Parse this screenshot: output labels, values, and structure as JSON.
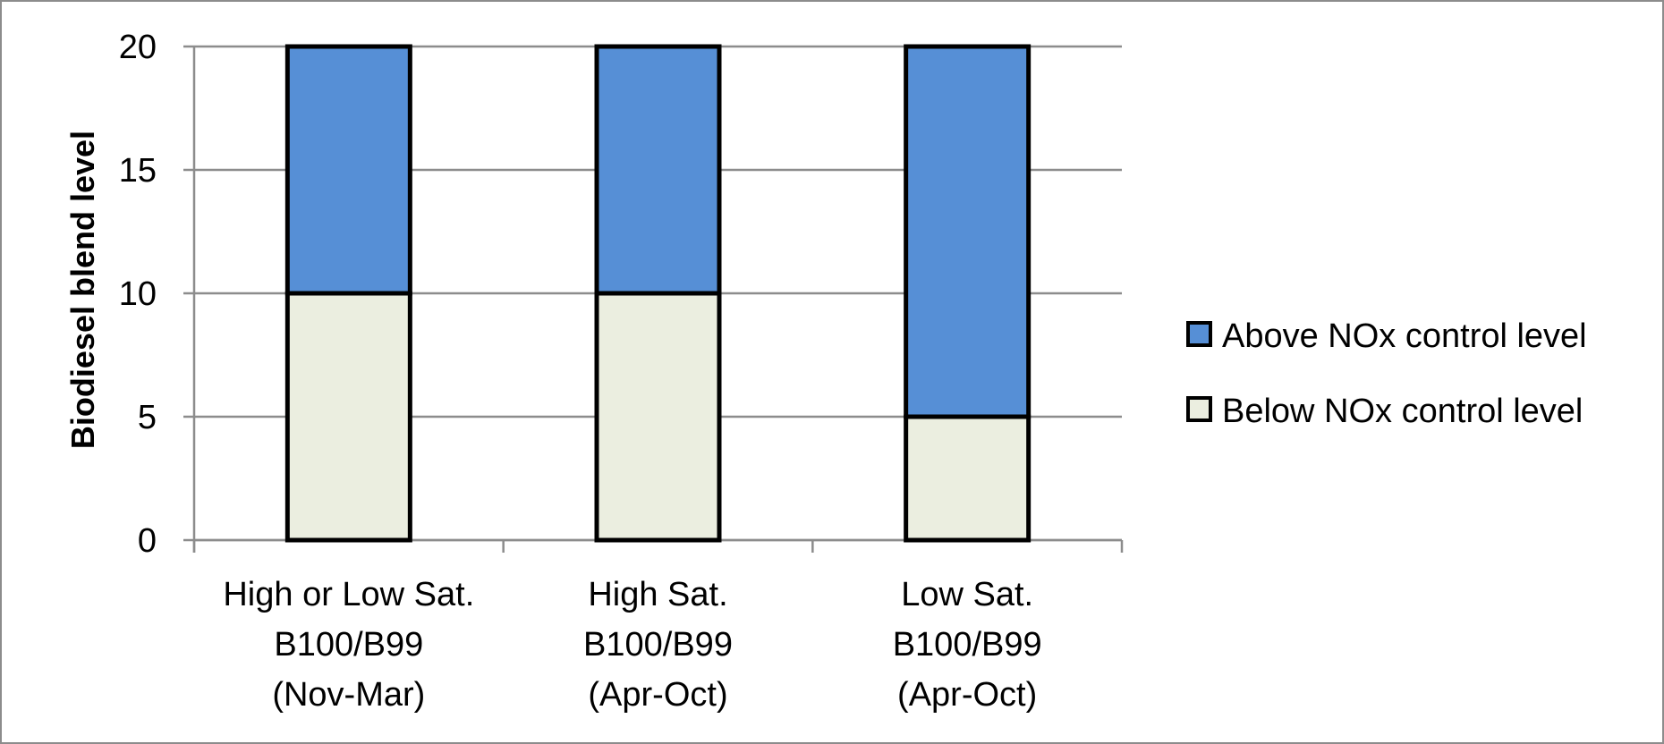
{
  "chart_data": {
    "type": "bar",
    "stacked": true,
    "categories": [
      [
        "High or Low Sat.",
        "B100/B99",
        "(Nov-Mar)"
      ],
      [
        "High Sat.",
        "B100/B99",
        "(Apr-Oct)"
      ],
      [
        "Low Sat.",
        "B100/B99",
        "(Apr-Oct)"
      ]
    ],
    "series": [
      {
        "name": "Below NOx control level",
        "values": [
          10,
          10,
          5
        ],
        "color": "#ebeee0"
      },
      {
        "name": "Above NOx control level",
        "values": [
          10,
          10,
          15
        ],
        "color": "#568fd6"
      }
    ],
    "legend_order": [
      1,
      0
    ],
    "legend_position": "right",
    "title": "",
    "xlabel": "",
    "ylabel": "Biodiesel blend level",
    "ylim": [
      0,
      20
    ],
    "yticks": [
      0,
      5,
      10,
      15,
      20
    ],
    "grid": true,
    "colors": {
      "gridline": "#8c8c8c",
      "bar_outline": "#000000",
      "border": "#8c8c8c"
    }
  }
}
